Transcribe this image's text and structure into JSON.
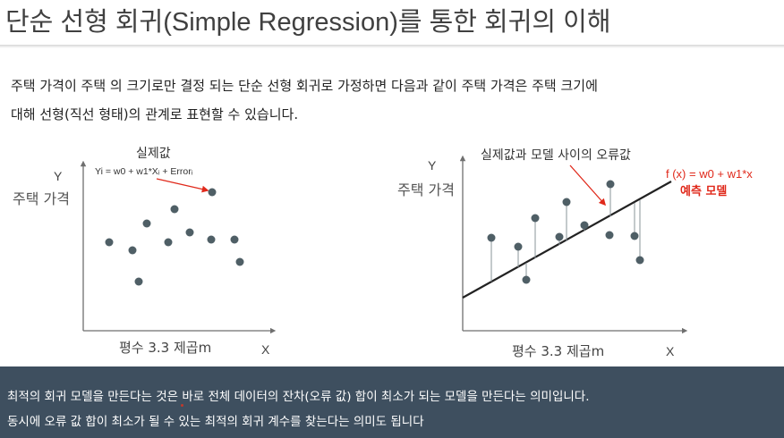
{
  "slide": {
    "title": "단순 선형 회귀(Simple Regression)를 통한 회귀의 이해",
    "intro_line1": "주택 가격이 주택 의 크기로만 결정 되는 단순 선형 회귀로 가정하면 다음과 같이 주택 가격은 주택 크기에",
    "intro_line2": "대해 선형(직선 형태)의 관계로 표현할 수 있습니다."
  },
  "left_chart": {
    "y_axis_letter": "Y",
    "y_axis_label": "주택 가격",
    "x_axis_label": "평수 3.3 제곱m",
    "x_axis_letter": "X",
    "annotation_title": "실제값",
    "annotation_formula": "Yi = w0 + w1*Xᵢ + Errorᵢ"
  },
  "right_chart": {
    "y_axis_letter": "Y",
    "y_axis_label": "주택 가격",
    "x_axis_label": "평수 3.3 제곱m",
    "x_axis_letter": "X",
    "annotation_title": "실제값과 모델 사이의 오류값",
    "model_formula": "f (x) = w0 + w1*x",
    "model_label": "예측 모델"
  },
  "footer": {
    "line1": "최적의 회귀 모델을 만든다는 것은 바로 전체 데이터의 잔차(오류 값) 합이 최소가 되는 모델을 만든다는 의미입니다.",
    "line2": "동시에 오류 값 합이 최소가 될 수 있는 최적의 회귀 계수를 찾는다는 의미도 됩니다"
  },
  "colors": {
    "point": "#4f5f66",
    "annotation_red": "#e0291b",
    "axis": "#6f6f6f",
    "line": "#222222",
    "footer_bg": "#3e4f5f"
  }
}
